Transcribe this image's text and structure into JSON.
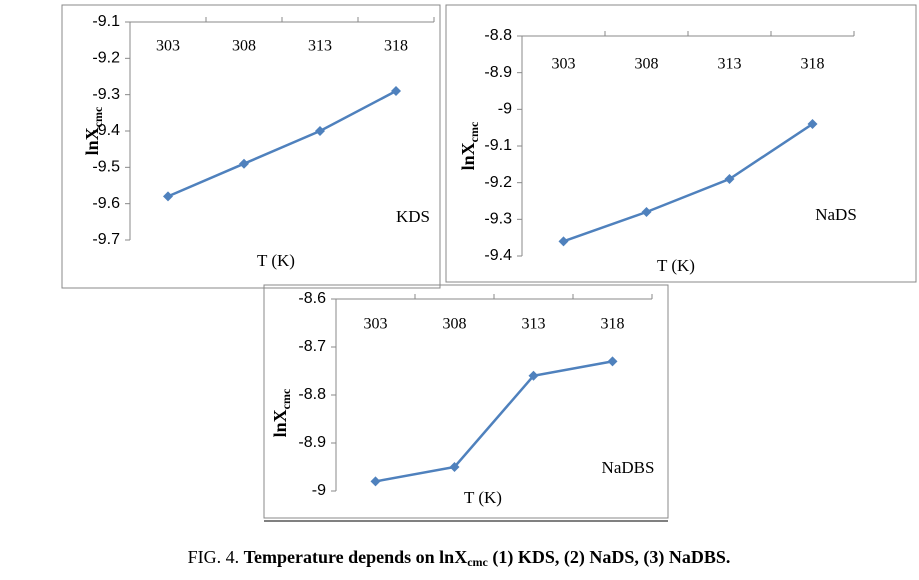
{
  "chart_data": [
    {
      "type": "line",
      "xlabel": "T (K)",
      "ylabel": "lnX",
      "ylabel_subscript": "cmc",
      "annotation": "KDS",
      "categories": [
        "303",
        "308",
        "313",
        "318"
      ],
      "series": [
        {
          "color": "#4f81bd",
          "values": [
            -9.58,
            -9.49,
            -9.4,
            -9.29
          ]
        }
      ],
      "ylim": [
        -9.7,
        -9.1
      ],
      "yticks": [
        -9.7,
        -9.6,
        -9.5,
        -9.4,
        -9.3,
        -9.2,
        -9.1
      ]
    },
    {
      "type": "line",
      "xlabel": "T (K)",
      "ylabel": "lnX",
      "ylabel_subscript": "cmc",
      "annotation": "NaDS",
      "categories": [
        "303",
        "308",
        "313",
        "318"
      ],
      "series": [
        {
          "color": "#4f81bd",
          "values": [
            -9.36,
            -9.28,
            -9.19,
            -9.04
          ]
        }
      ],
      "ylim": [
        -9.4,
        -8.8
      ],
      "yticks": [
        -9.4,
        -9.3,
        -9.2,
        -9.1,
        -9,
        -8.9,
        -8.8
      ]
    },
    {
      "type": "line",
      "xlabel": "T (K)",
      "ylabel": "lnX",
      "ylabel_subscript": "cmc",
      "annotation": "NaDBS",
      "categories": [
        "303",
        "308",
        "313",
        "318"
      ],
      "series": [
        {
          "color": "#4f81bd",
          "values": [
            -8.98,
            -8.95,
            -8.76,
            -8.73
          ]
        }
      ],
      "ylim": [
        -9,
        -8.6
      ],
      "yticks": [
        -9,
        -8.9,
        -8.8,
        -8.7,
        -8.6
      ]
    }
  ],
  "caption": {
    "label": "FIG. 4.",
    "text": "Temperature depends on lnX",
    "subscript": "cmc",
    "rest": " (1) KDS, (2) NaDS, (3) NaDBS."
  }
}
